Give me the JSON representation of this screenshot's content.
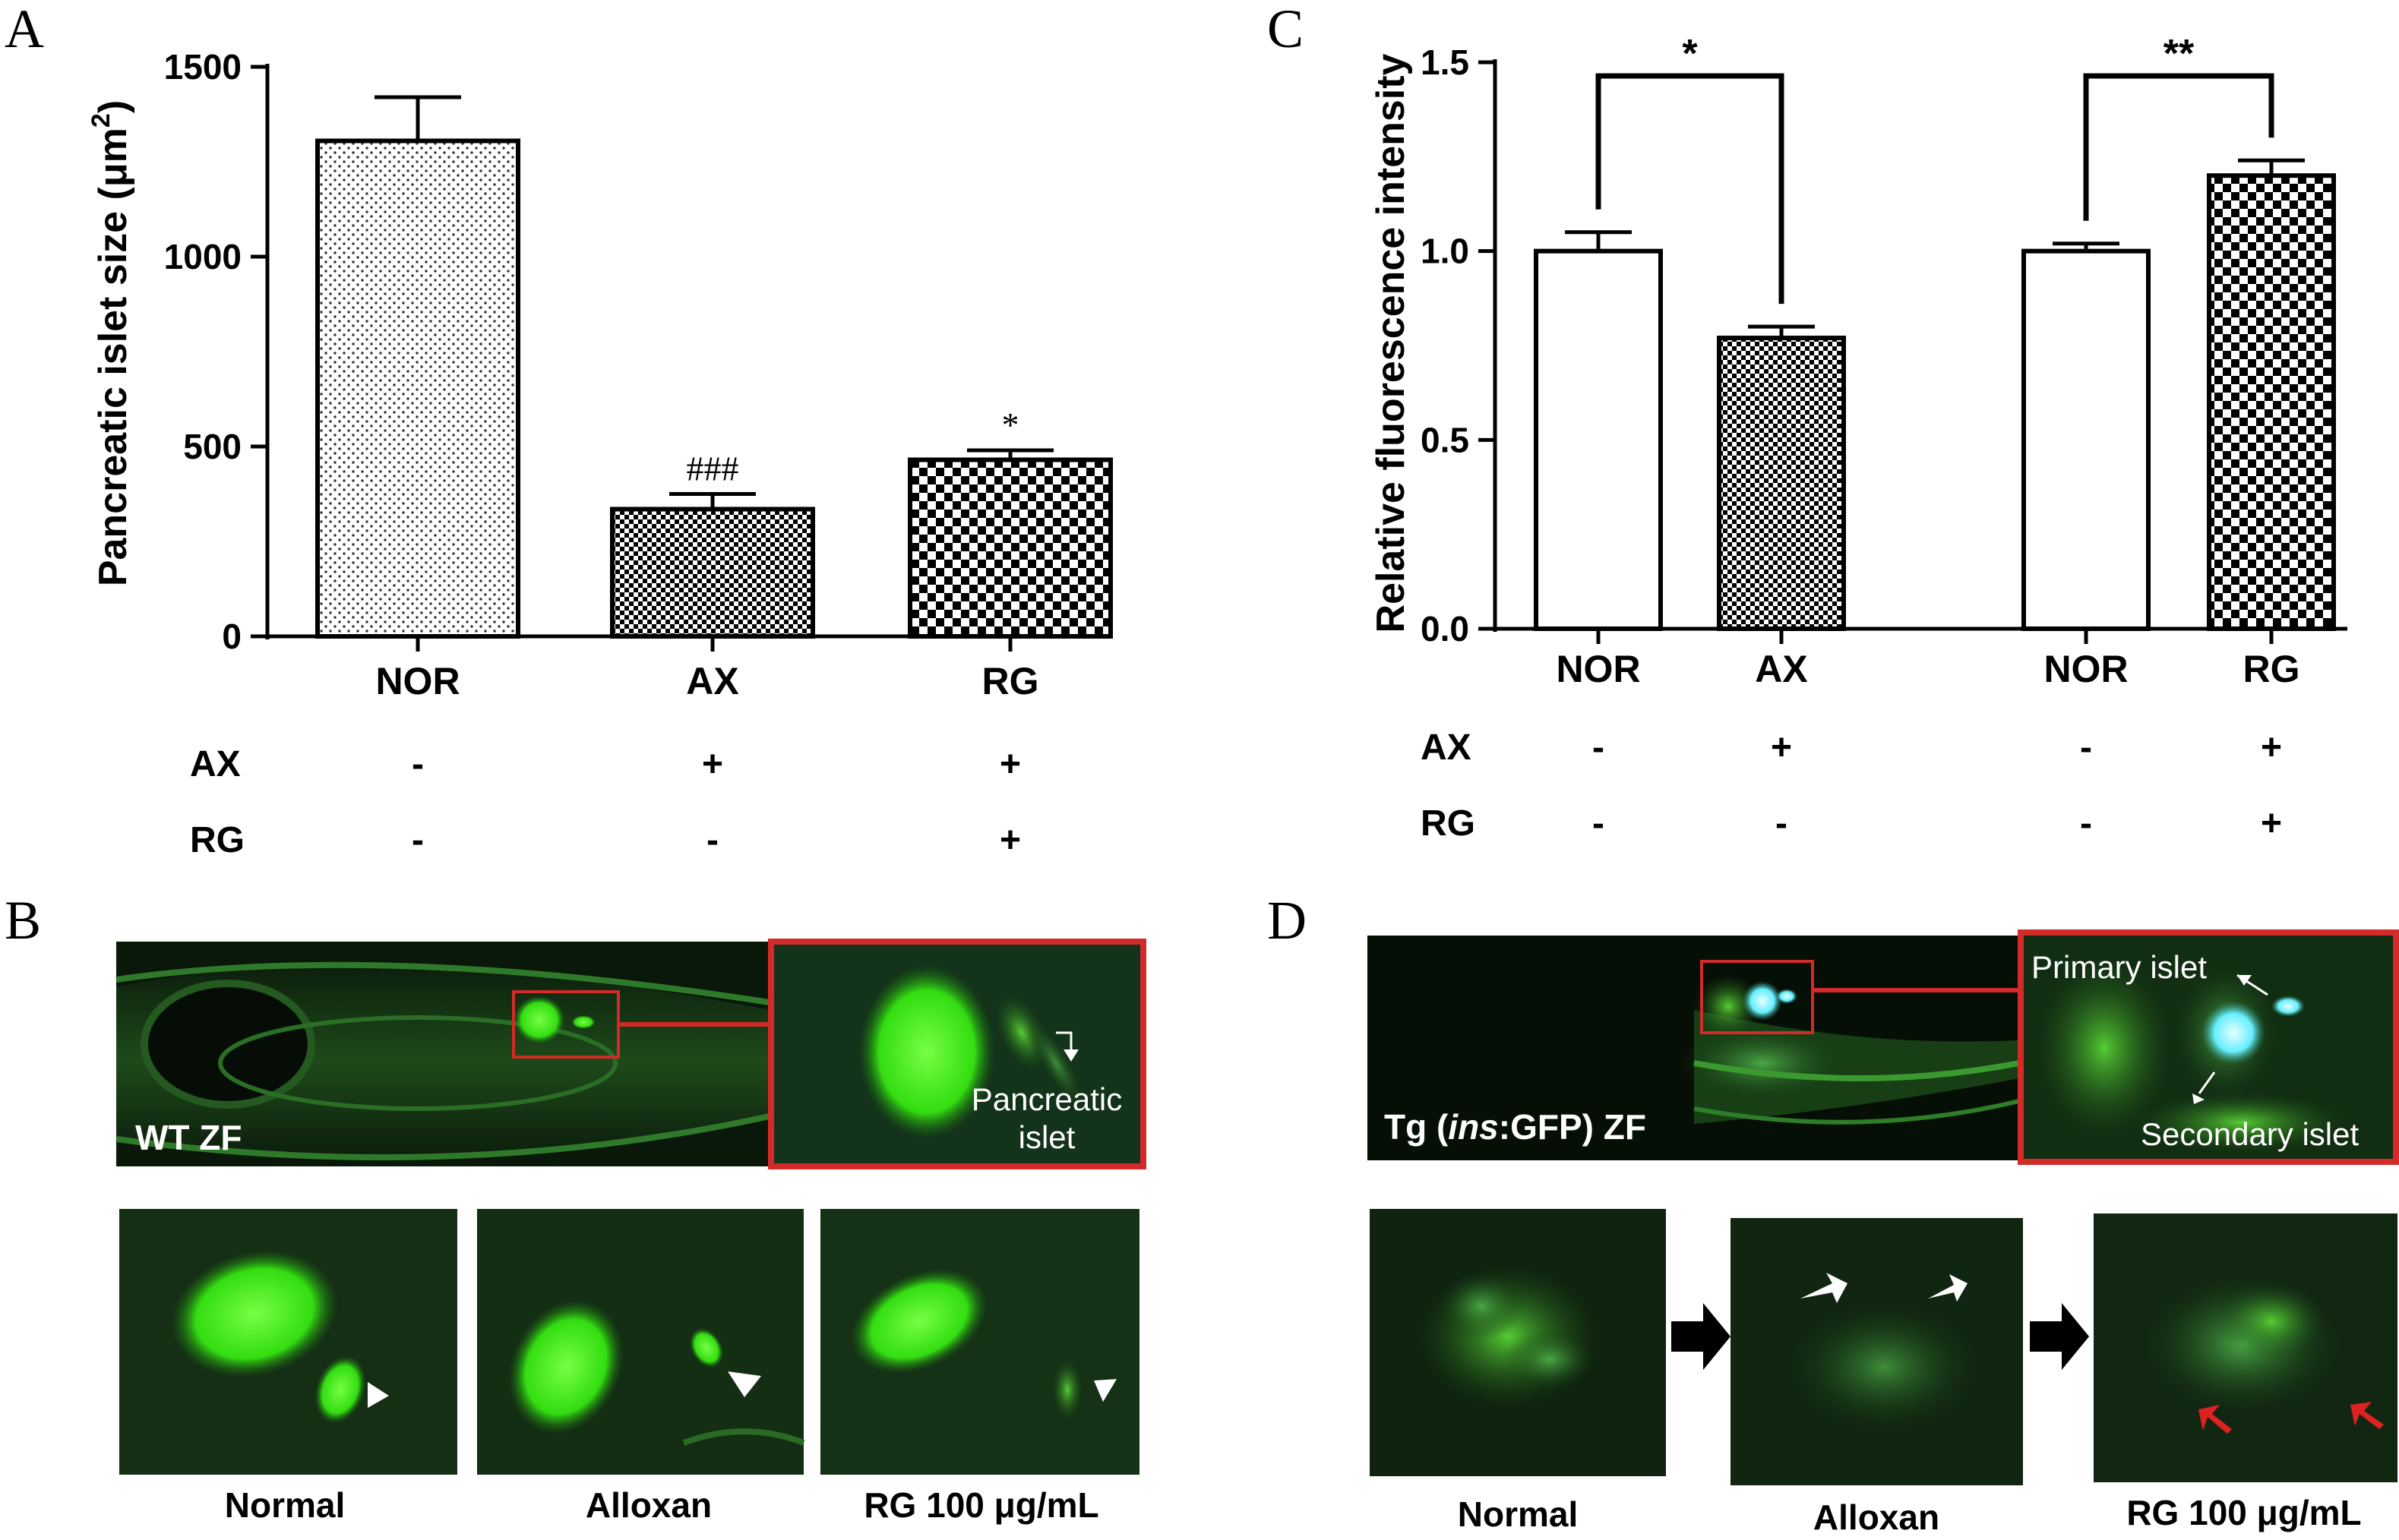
{
  "panels": {
    "A": {
      "letter": "A",
      "chart_data": {
        "type": "bar",
        "categories": [
          "NOR",
          "AX",
          "RG"
        ],
        "values": [
          1305,
          335,
          465
        ],
        "errors": [
          115,
          40,
          25
        ],
        "significance": [
          "",
          "###",
          "*"
        ],
        "patterns": [
          "fine-dots",
          "checker-small",
          "checker-large"
        ],
        "ylabel": "Pancreatic islet size (μm²)",
        "ylim": [
          0,
          1500
        ],
        "yticks": [
          "0",
          "500",
          "1000",
          "1500"
        ],
        "condition_rows": [
          {
            "label": "AX",
            "values": [
              "-",
              "+",
              "+"
            ]
          },
          {
            "label": "RG",
            "values": [
              "-",
              "-",
              "+"
            ]
          }
        ]
      }
    },
    "C": {
      "letter": "C",
      "chart_data": {
        "type": "bar",
        "categories": [
          "NOR",
          "AX",
          "NOR",
          "RG"
        ],
        "values": [
          1.0,
          0.77,
          1.0,
          1.2
        ],
        "errors": [
          0.05,
          0.03,
          0.02,
          0.04
        ],
        "patterns": [
          "white",
          "checker-small",
          "white",
          "checker-large"
        ],
        "ylabel": "Relative fluorescence intensity",
        "ylim": [
          0,
          1.5
        ],
        "yticks": [
          "0.0",
          "0.5",
          "1.0",
          "1.5"
        ],
        "comparisons": [
          {
            "pair": [
              0,
              1
            ],
            "label": "*"
          },
          {
            "pair": [
              2,
              3
            ],
            "label": "**"
          }
        ],
        "condition_rows": [
          {
            "label": "AX",
            "values": [
              "-",
              "+",
              "-",
              "+"
            ]
          },
          {
            "label": "RG",
            "values": [
              "-",
              "-",
              "-",
              "+"
            ]
          }
        ]
      }
    },
    "B": {
      "letter": "B",
      "main_label": "WT ZF",
      "inset_label_line1": "Pancreatic",
      "inset_label_line2": "islet",
      "captions": [
        "Normal",
        "Alloxan",
        "RG 100 μg/mL"
      ]
    },
    "D": {
      "letter": "D",
      "main_label_prefix": "Tg (",
      "main_label_italic": "ins",
      "main_label_suffix": ":GFP)  ZF",
      "inset_primary": "Primary  islet",
      "inset_secondary": "Secondary islet",
      "captions": [
        "Normal",
        "Alloxan",
        "RG 100 μg/mL"
      ]
    }
  },
  "colors": {
    "fluorescence_green": "#44dd22",
    "islet_cyan": "#66eeff",
    "highlight_red": "#d32a2a",
    "arrow_red": "#dd2222",
    "photo_background": "#0b1d0b"
  }
}
